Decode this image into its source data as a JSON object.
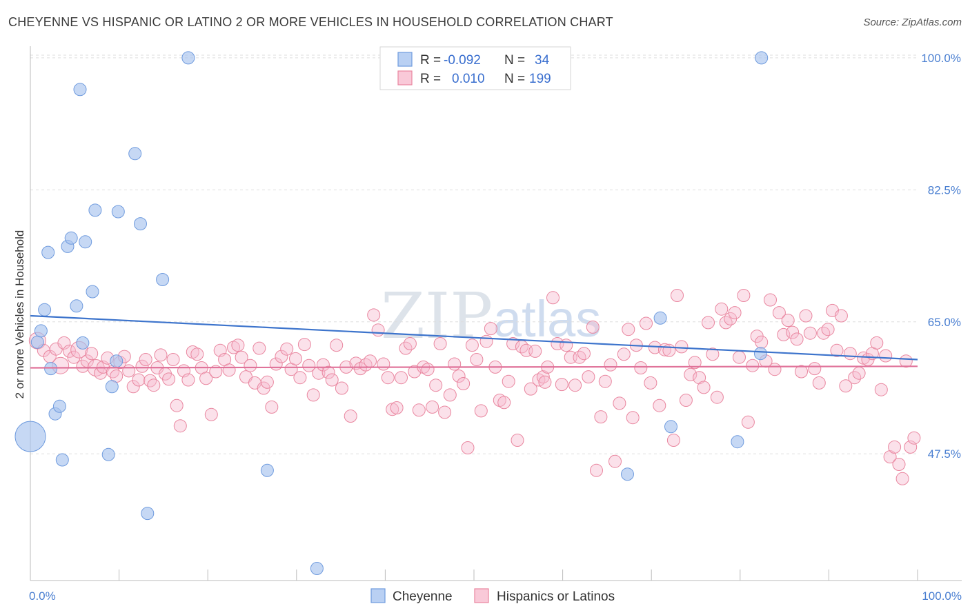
{
  "header": {
    "title": "CHEYENNE VS HISPANIC OR LATINO 2 OR MORE VEHICLES IN HOUSEHOLD CORRELATION CHART",
    "source": "Source: ZipAtlas.com"
  },
  "watermark": {
    "zip": "ZIP",
    "atlas": "atlas"
  },
  "chart_data": {
    "type": "scatter",
    "title": "CHEYENNE VS HISPANIC OR LATINO 2 OR MORE VEHICLES IN HOUSEHOLD CORRELATION CHART",
    "xlabel": "",
    "ylabel": "2 or more Vehicles in Household",
    "xlim": [
      0,
      100
    ],
    "ylim": [
      30.7,
      102
    ],
    "x_tick_labels": {
      "left": "0.0%",
      "right": "100.0%"
    },
    "y_ticks": [
      {
        "value": 100.0,
        "label": "100.0%"
      },
      {
        "value": 82.5,
        "label": "82.5%"
      },
      {
        "value": 65.0,
        "label": "65.0%"
      },
      {
        "value": 47.5,
        "label": "47.5%"
      }
    ],
    "grid": true,
    "legend": {
      "placement": "top-center",
      "rows": [
        {
          "r_label": "R =",
          "r_value": "-0.092",
          "n_label": "N =",
          "n_value": "34"
        },
        {
          "r_label": "R =",
          "r_value": "0.010",
          "n_label": "N =",
          "n_value": "199"
        }
      ]
    },
    "series": [
      {
        "name": "Cheyenne",
        "color": "#a7c3ee",
        "stroke": "#6f9bde",
        "trend": {
          "x": [
            0,
            100
          ],
          "y": [
            65.8,
            60.0
          ],
          "color": "#3d74cc"
        },
        "points": [
          [
            0.0,
            49.8,
            22
          ],
          [
            0.8,
            62.3,
            9
          ],
          [
            1.2,
            63.8,
            9
          ],
          [
            1.6,
            66.6,
            9
          ],
          [
            2.0,
            74.2,
            9
          ],
          [
            2.3,
            58.8,
            9
          ],
          [
            2.8,
            52.8,
            9
          ],
          [
            3.3,
            53.8,
            9
          ],
          [
            3.6,
            46.7,
            9
          ],
          [
            4.2,
            75.0,
            9
          ],
          [
            4.6,
            76.1,
            9
          ],
          [
            5.2,
            67.1,
            9
          ],
          [
            5.6,
            95.8,
            9
          ],
          [
            5.9,
            62.2,
            9
          ],
          [
            6.2,
            75.6,
            9
          ],
          [
            7.0,
            69.0,
            9
          ],
          [
            7.3,
            79.8,
            9
          ],
          [
            8.8,
            47.4,
            9
          ],
          [
            9.2,
            56.4,
            9
          ],
          [
            9.7,
            59.8,
            9
          ],
          [
            9.9,
            79.6,
            9
          ],
          [
            11.8,
            87.3,
            9
          ],
          [
            12.4,
            78.0,
            9
          ],
          [
            13.2,
            39.6,
            9
          ],
          [
            14.9,
            70.6,
            9
          ],
          [
            17.8,
            100.0,
            9
          ],
          [
            26.7,
            45.3,
            9
          ],
          [
            32.3,
            32.3,
            9
          ],
          [
            67.3,
            44.8,
            9
          ],
          [
            71.0,
            65.5,
            9
          ],
          [
            72.2,
            51.1,
            9
          ],
          [
            79.7,
            49.1,
            9
          ],
          [
            82.3,
            60.8,
            9
          ],
          [
            82.4,
            100.0,
            9
          ]
        ]
      },
      {
        "name": "Hispanics or Latinos",
        "color": "#f7bdd0",
        "stroke": "#e9869f",
        "trend": {
          "x": [
            0,
            100
          ],
          "y": [
            58.9,
            59.1
          ],
          "color": "#e0739a"
        },
        "points": [
          [
            0.8,
            62.5,
            12
          ],
          [
            1.5,
            61.2,
            9
          ],
          [
            2.2,
            60.4,
            9
          ],
          [
            2.9,
            61.4,
            9
          ],
          [
            3.4,
            59.2,
            12
          ],
          [
            3.8,
            62.2,
            9
          ],
          [
            4.4,
            61.1,
            9
          ],
          [
            4.9,
            60.3,
            9
          ],
          [
            5.5,
            61.3,
            12
          ],
          [
            5.9,
            59.1,
            9
          ],
          [
            6.4,
            59.8,
            9
          ],
          [
            6.9,
            60.8,
            9
          ],
          [
            7.4,
            58.9,
            12
          ],
          [
            7.9,
            58.2,
            9
          ],
          [
            8.2,
            59.0,
            9
          ],
          [
            8.7,
            60.2,
            9
          ],
          [
            9.3,
            58.4,
            9
          ],
          [
            9.7,
            57.8,
            9
          ],
          [
            10.1,
            59.6,
            9
          ],
          [
            10.6,
            60.4,
            9
          ],
          [
            11.1,
            58.5,
            9
          ],
          [
            11.6,
            56.4,
            9
          ],
          [
            12.2,
            57.3,
            9
          ],
          [
            12.6,
            59.1,
            9
          ],
          [
            13.0,
            60.0,
            9
          ],
          [
            13.5,
            57.2,
            9
          ],
          [
            13.9,
            56.6,
            9
          ],
          [
            14.3,
            58.9,
            9
          ],
          [
            14.7,
            60.6,
            9
          ],
          [
            15.2,
            58.1,
            9
          ],
          [
            15.6,
            57.4,
            9
          ],
          [
            16.1,
            60.0,
            9
          ],
          [
            16.5,
            53.9,
            9
          ],
          [
            16.9,
            51.2,
            9
          ],
          [
            17.3,
            58.5,
            9
          ],
          [
            17.8,
            57.3,
            9
          ],
          [
            18.3,
            61.0,
            9
          ],
          [
            18.8,
            60.7,
            9
          ],
          [
            19.3,
            58.9,
            9
          ],
          [
            19.8,
            57.5,
            9
          ],
          [
            20.4,
            52.7,
            9
          ],
          [
            20.9,
            58.4,
            9
          ],
          [
            21.4,
            61.2,
            9
          ],
          [
            21.9,
            60.0,
            9
          ],
          [
            22.4,
            58.6,
            9
          ],
          [
            22.9,
            61.6,
            9
          ],
          [
            23.4,
            61.9,
            9
          ],
          [
            23.8,
            60.3,
            9
          ],
          [
            24.3,
            57.7,
            9
          ],
          [
            24.8,
            59.2,
            9
          ],
          [
            25.3,
            56.9,
            9
          ],
          [
            25.8,
            61.5,
            9
          ],
          [
            26.3,
            56.2,
            9
          ],
          [
            26.7,
            57.0,
            9
          ],
          [
            27.2,
            53.7,
            9
          ],
          [
            27.7,
            59.4,
            9
          ],
          [
            28.3,
            60.4,
            9
          ],
          [
            28.9,
            61.4,
            9
          ],
          [
            29.4,
            58.7,
            9
          ],
          [
            29.9,
            60.1,
            9
          ],
          [
            30.4,
            57.6,
            9
          ],
          [
            30.9,
            62.0,
            9
          ],
          [
            31.4,
            59.2,
            9
          ],
          [
            31.9,
            55.3,
            9
          ],
          [
            32.5,
            58.2,
            9
          ],
          [
            33.0,
            59.3,
            9
          ],
          [
            33.6,
            58.3,
            9
          ],
          [
            34.0,
            57.3,
            9
          ],
          [
            34.5,
            61.9,
            9
          ],
          [
            35.1,
            56.2,
            9
          ],
          [
            35.6,
            59.0,
            9
          ],
          [
            36.1,
            52.5,
            9
          ],
          [
            36.7,
            59.5,
            9
          ],
          [
            37.2,
            58.8,
            9
          ],
          [
            37.8,
            59.3,
            9
          ],
          [
            38.3,
            59.8,
            9
          ],
          [
            38.7,
            65.9,
            9
          ],
          [
            39.2,
            63.9,
            9
          ],
          [
            39.8,
            59.4,
            9
          ],
          [
            40.3,
            57.6,
            9
          ],
          [
            40.8,
            53.4,
            9
          ],
          [
            41.3,
            53.6,
            9
          ],
          [
            41.8,
            57.6,
            9
          ],
          [
            42.3,
            61.5,
            9
          ],
          [
            42.8,
            62.1,
            9
          ],
          [
            43.3,
            58.4,
            9
          ],
          [
            43.8,
            53.3,
            9
          ],
          [
            44.3,
            59.0,
            9
          ],
          [
            44.8,
            58.7,
            9
          ],
          [
            45.3,
            53.7,
            9
          ],
          [
            45.7,
            56.6,
            9
          ],
          [
            46.2,
            62.1,
            9
          ],
          [
            46.7,
            53.0,
            9
          ],
          [
            47.3,
            55.3,
            9
          ],
          [
            47.8,
            59.4,
            9
          ],
          [
            48.3,
            57.8,
            9
          ],
          [
            48.8,
            56.8,
            9
          ],
          [
            49.3,
            48.3,
            9
          ],
          [
            49.8,
            61.9,
            9
          ],
          [
            50.3,
            60.0,
            9
          ],
          [
            50.8,
            53.2,
            9
          ],
          [
            51.4,
            62.4,
            9
          ],
          [
            51.9,
            64.1,
            9
          ],
          [
            52.4,
            59.0,
            9
          ],
          [
            52.9,
            54.6,
            9
          ],
          [
            53.4,
            54.3,
            9
          ],
          [
            53.9,
            57.1,
            9
          ],
          [
            54.4,
            62.1,
            9
          ],
          [
            54.9,
            49.3,
            9
          ],
          [
            55.4,
            61.7,
            9
          ],
          [
            55.9,
            61.2,
            9
          ],
          [
            56.4,
            56.1,
            9
          ],
          [
            56.9,
            61.1,
            9
          ],
          [
            57.3,
            57.3,
            9
          ],
          [
            57.8,
            57.7,
            9
          ],
          [
            58.3,
            59.0,
            9
          ],
          [
            58.9,
            68.2,
            9
          ],
          [
            59.4,
            62.1,
            9
          ],
          [
            59.9,
            56.7,
            9
          ],
          [
            60.4,
            61.9,
            9
          ],
          [
            60.9,
            60.3,
            9
          ],
          [
            61.4,
            56.6,
            9
          ],
          [
            61.9,
            60.3,
            9
          ],
          [
            62.4,
            60.8,
            9
          ],
          [
            62.9,
            57.7,
            9
          ],
          [
            63.4,
            64.3,
            9
          ],
          [
            63.8,
            45.3,
            9
          ],
          [
            64.3,
            52.4,
            9
          ],
          [
            64.8,
            57.1,
            9
          ],
          [
            65.4,
            59.3,
            9
          ],
          [
            65.9,
            46.5,
            9
          ],
          [
            66.4,
            54.2,
            9
          ],
          [
            66.9,
            60.7,
            9
          ],
          [
            67.4,
            64.0,
            9
          ],
          [
            67.9,
            52.3,
            9
          ],
          [
            68.3,
            61.9,
            9
          ],
          [
            68.8,
            58.9,
            9
          ],
          [
            69.4,
            64.8,
            9
          ],
          [
            69.9,
            56.9,
            9
          ],
          [
            70.4,
            61.6,
            9
          ],
          [
            70.9,
            53.9,
            9
          ],
          [
            71.5,
            61.3,
            9
          ],
          [
            72.0,
            61.2,
            9
          ],
          [
            72.5,
            49.3,
            9
          ],
          [
            72.9,
            68.5,
            9
          ],
          [
            73.4,
            61.7,
            9
          ],
          [
            73.9,
            54.6,
            9
          ],
          [
            74.4,
            58.0,
            9
          ],
          [
            74.9,
            59.6,
            9
          ],
          [
            75.4,
            57.6,
            9
          ],
          [
            75.9,
            56.3,
            9
          ],
          [
            76.4,
            64.9,
            9
          ],
          [
            76.9,
            60.7,
            9
          ],
          [
            77.4,
            55.0,
            9
          ],
          [
            77.9,
            66.7,
            9
          ],
          [
            78.4,
            64.9,
            9
          ],
          [
            78.9,
            65.4,
            9
          ],
          [
            79.4,
            66.2,
            9
          ],
          [
            79.9,
            60.3,
            9
          ],
          [
            80.4,
            68.5,
            9
          ],
          [
            80.9,
            51.7,
            9
          ],
          [
            81.4,
            59.2,
            9
          ],
          [
            81.9,
            63.1,
            9
          ],
          [
            82.4,
            62.3,
            9
          ],
          [
            82.9,
            59.8,
            9
          ],
          [
            83.4,
            67.9,
            9
          ],
          [
            83.9,
            58.7,
            9
          ],
          [
            84.4,
            66.2,
            9
          ],
          [
            84.9,
            63.3,
            9
          ],
          [
            85.4,
            65.2,
            9
          ],
          [
            85.9,
            63.6,
            9
          ],
          [
            86.4,
            62.7,
            9
          ],
          [
            86.9,
            58.4,
            9
          ],
          [
            87.4,
            65.8,
            9
          ],
          [
            87.9,
            63.5,
            9
          ],
          [
            88.4,
            58.8,
            9
          ],
          [
            88.9,
            56.9,
            9
          ],
          [
            89.4,
            63.5,
            9
          ],
          [
            89.9,
            64.0,
            9
          ],
          [
            90.4,
            66.5,
            9
          ],
          [
            90.9,
            61.2,
            9
          ],
          [
            91.4,
            65.8,
            9
          ],
          [
            91.9,
            56.5,
            9
          ],
          [
            92.4,
            60.8,
            9
          ],
          [
            92.9,
            57.6,
            9
          ],
          [
            93.4,
            58.2,
            9
          ],
          [
            93.9,
            60.2,
            9
          ],
          [
            94.4,
            60.0,
            9
          ],
          [
            94.9,
            60.8,
            9
          ],
          [
            95.4,
            62.2,
            9
          ],
          [
            95.9,
            56.0,
            9
          ],
          [
            96.4,
            60.5,
            9
          ],
          [
            96.9,
            47.1,
            9
          ],
          [
            97.4,
            48.4,
            9
          ],
          [
            97.9,
            46.1,
            9
          ],
          [
            98.3,
            44.2,
            9
          ],
          [
            98.7,
            59.8,
            9
          ],
          [
            99.2,
            48.4,
            9
          ],
          [
            99.6,
            49.6,
            9
          ],
          [
            58.0,
            57.0,
            9
          ]
        ]
      }
    ]
  }
}
